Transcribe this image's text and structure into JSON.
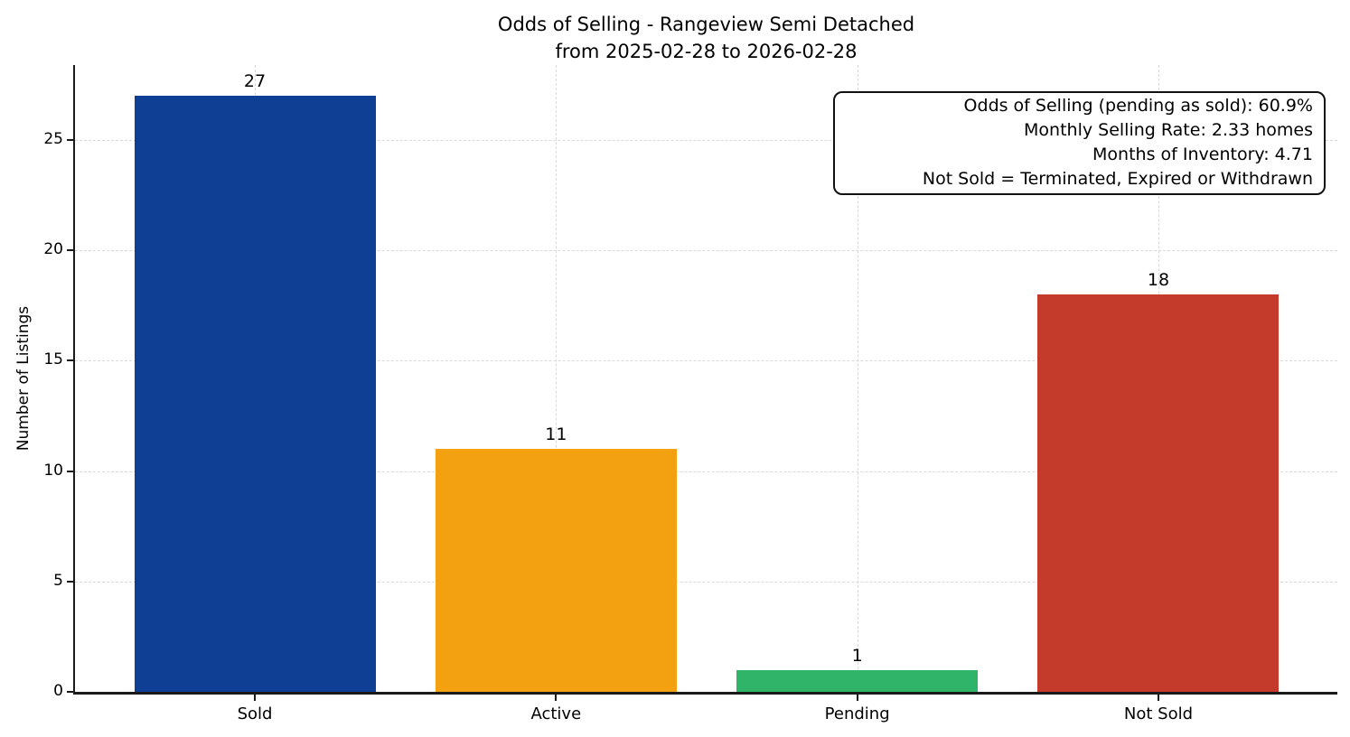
{
  "chart_data": {
    "type": "bar",
    "title": "Odds of Selling - Rangeview Semi Detached",
    "subtitle": "from 2025-02-28 to 2026-02-28",
    "categories": [
      "Sold",
      "Active",
      "Pending",
      "Not Sold"
    ],
    "values": [
      27,
      11,
      1,
      18
    ],
    "bar_colors": [
      "#0f3e95",
      "#f3a011",
      "#2fb469",
      "#c53b2b"
    ],
    "value_labels": [
      "27",
      "11",
      "1",
      "18"
    ],
    "xlabel": "",
    "ylabel": "Number of Listings",
    "yticks": [
      0,
      5,
      10,
      15,
      20,
      25
    ],
    "ylim": [
      0,
      28.4
    ],
    "grid": {
      "axes": "both",
      "style": "dashed",
      "color": "#d9d9d9"
    },
    "legend": "none",
    "annotation_box": {
      "position": "top-right",
      "lines": [
        "Odds of Selling (pending as sold): 60.9%",
        "Monthly Selling Rate: 2.33 homes",
        "Months of Inventory: 4.71",
        "Not Sold = Terminated, Expired or Withdrawn"
      ]
    }
  },
  "colors": {
    "background": "#ffffff",
    "spine": "#1a1a1a",
    "grid": "#d9d9d9",
    "text": "#000000"
  }
}
